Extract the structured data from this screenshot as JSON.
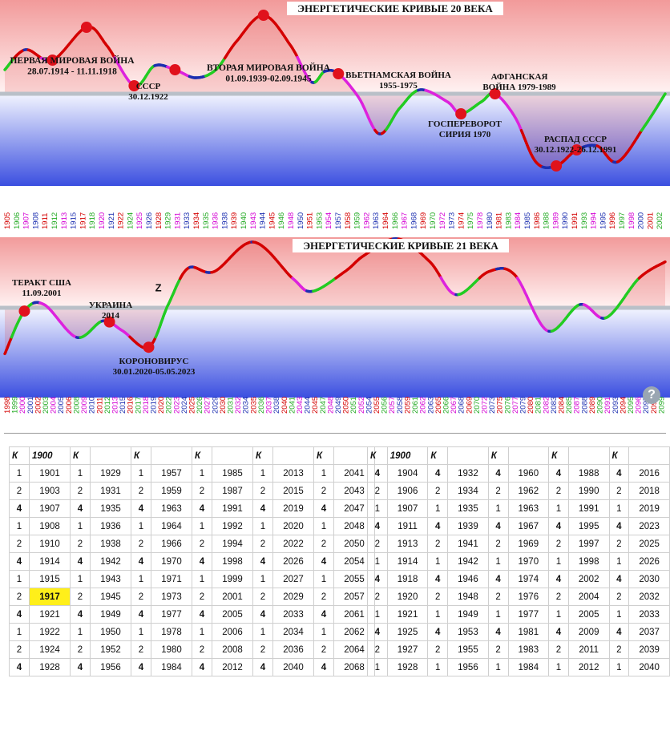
{
  "chart_data": [
    {
      "type": "line",
      "title": "ЭНЕРГЕТИЧЕСКИЕ КРИВЫЕ 20 ВЕКА",
      "x_start": 1905,
      "x_end": 2002,
      "x_tick_labels": [
        "1905",
        "1906",
        "1907",
        "1908",
        "1911",
        "1912",
        "1913",
        "1915",
        "1917",
        "1918",
        "1920",
        "1921",
        "1922",
        "1924",
        "1925",
        "1926",
        "1928",
        "1929",
        "1931",
        "1933",
        "1934",
        "1935",
        "1936",
        "1938",
        "1939",
        "1940",
        "1943",
        "1944",
        "1945",
        "1946",
        "1948",
        "1950",
        "1951",
        "1953",
        "1954",
        "1957",
        "1958",
        "1959",
        "1962",
        "1963",
        "1964",
        "1966",
        "1967",
        "1968",
        "1969",
        "1970",
        "1972",
        "1973",
        "1974",
        "1975",
        "1978",
        "1980",
        "1981",
        "1983",
        "1984",
        "1985",
        "1986",
        "1988",
        "1989",
        "1990",
        "1991",
        "1993",
        "1994",
        "1995",
        "1996",
        "1997",
        "1998",
        "2000",
        "2001",
        "2002"
      ],
      "curve": [
        [
          1905,
          0.3
        ],
        [
          1908,
          0.55
        ],
        [
          1912,
          0.42
        ],
        [
          1917,
          0.83
        ],
        [
          1920,
          0.6
        ],
        [
          1924,
          0.1
        ],
        [
          1927,
          0.35
        ],
        [
          1930,
          0.3
        ],
        [
          1933,
          0.2
        ],
        [
          1936,
          0.3
        ],
        [
          1939,
          0.65
        ],
        [
          1943,
          0.98
        ],
        [
          1947,
          0.6
        ],
        [
          1950,
          0.15
        ],
        [
          1952,
          0.28
        ],
        [
          1954,
          0.25
        ],
        [
          1957,
          -0.05
        ],
        [
          1960,
          -0.5
        ],
        [
          1963,
          -0.18
        ],
        [
          1966,
          0.05
        ],
        [
          1970,
          -0.1
        ],
        [
          1972,
          -0.25
        ],
        [
          1975,
          -0.1
        ],
        [
          1977,
          0.0
        ],
        [
          1980,
          -0.3
        ],
        [
          1983,
          -0.85
        ],
        [
          1986,
          -0.9
        ],
        [
          1989,
          -0.7
        ],
        [
          1992,
          -0.65
        ],
        [
          1995,
          -0.85
        ],
        [
          1999,
          -0.4
        ],
        [
          2002,
          0.0
        ]
      ],
      "events": [
        {
          "year": 1914,
          "label": "ПЕРВАЯ МИРОВАЯ ВОЙНА",
          "sub": "28.07.1914 - 11.11.1918"
        },
        {
          "year": 1922,
          "label": "СССР",
          "sub": "30.12.1922"
        },
        {
          "year": 1939,
          "label": "ВТОРАЯ МИРОВАЯ ВОЙНА",
          "sub": "01.09.1939-02.09.1945"
        },
        {
          "year": 1955,
          "label": "ВЬЕТНАМСКАЯ ВОЙНА",
          "sub": "1955-1975"
        },
        {
          "year": 1970,
          "label": "ГОСПЕРЕВОРОТ",
          "sub": "СИРИЯ 1970"
        },
        {
          "year": 1979,
          "label": "АФГАНСКАЯ",
          "sub": "ВОЙНА 1979-1989"
        },
        {
          "year": 1991,
          "label": "РАСПАД СССР",
          "sub": "30.12.1922-26.12.1991"
        }
      ],
      "markers": [
        1912,
        1917,
        1924,
        1930,
        1943,
        1954,
        1972,
        1977,
        1986,
        1989
      ]
    },
    {
      "type": "line",
      "title": "ЭНЕРГЕТИЧЕСКИЕ КРИВЫЕ 21 ВЕКА",
      "x_start": 1998,
      "x_end": 2099,
      "x_tick_labels": [
        "1998",
        "1999",
        "2000",
        "2001",
        "2002",
        "2003",
        "2004",
        "2005",
        "2006",
        "2008",
        "2009",
        "2010",
        "2011",
        "2012",
        "2013",
        "2015",
        "2016",
        "2017",
        "2018",
        "2019",
        "2020",
        "2022",
        "2023",
        "2024",
        "2025",
        "2026",
        "2027",
        "2029",
        "2030",
        "2031",
        "2032",
        "2034",
        "2035",
        "2036",
        "2037",
        "2038",
        "2040",
        "2041",
        "2043",
        "2044",
        "2045",
        "2047",
        "2048",
        "2049",
        "2050",
        "2051",
        "2052",
        "2054",
        "2055",
        "2056",
        "2057",
        "2058",
        "2059",
        "2061",
        "2062",
        "2063",
        "2065",
        "2066",
        "2067",
        "2068",
        "2069",
        "2070",
        "2072",
        "2073",
        "2075",
        "2076",
        "2077",
        "2079",
        "2080",
        "2081",
        "2082",
        "2083",
        "2084",
        "2085",
        "2087",
        "2088",
        "2089",
        "2090",
        "2091",
        "2093",
        "2094",
        "2095",
        "2096",
        "2097",
        "2098",
        "2099"
      ],
      "annotation": "Z",
      "curve": [
        [
          1998,
          -0.7
        ],
        [
          2001,
          -0.05
        ],
        [
          2004,
          0.05
        ],
        [
          2009,
          -0.45
        ],
        [
          2013,
          -0.2
        ],
        [
          2016,
          -0.35
        ],
        [
          2020,
          -0.6
        ],
        [
          2023,
          0.05
        ],
        [
          2026,
          0.6
        ],
        [
          2030,
          0.55
        ],
        [
          2036,
          1.0
        ],
        [
          2042,
          0.45
        ],
        [
          2045,
          0.25
        ],
        [
          2050,
          0.55
        ],
        [
          2053,
          0.8
        ],
        [
          2058,
          1.05
        ],
        [
          2063,
          0.7
        ],
        [
          2067,
          0.2
        ],
        [
          2072,
          0.55
        ],
        [
          2076,
          0.5
        ],
        [
          2081,
          -0.35
        ],
        [
          2086,
          0.05
        ],
        [
          2090,
          -0.15
        ],
        [
          2095,
          0.45
        ],
        [
          2099,
          0.7
        ]
      ],
      "events": [
        {
          "year": 2001,
          "label": "ТЕРАКТ США",
          "sub": "11.09.2001"
        },
        {
          "year": 2014,
          "label": "УКРАИНА",
          "sub": "2014"
        },
        {
          "year": 2020,
          "label": "КОРОНОВИРУС",
          "sub": "30.01.2020-05.05.2023"
        }
      ],
      "markers": [
        2001,
        2014,
        2020
      ]
    }
  ],
  "table_left": {
    "header": [
      "К",
      "1900",
      "К",
      "",
      "К",
      "",
      "К",
      "",
      "К",
      "",
      "К",
      ""
    ],
    "rows": [
      [
        "1",
        "1901",
        "1",
        "1929",
        "1",
        "1957",
        "1",
        "1985",
        "1",
        "2013",
        "1",
        "2041"
      ],
      [
        "2",
        "1903",
        "2",
        "1931",
        "2",
        "1959",
        "2",
        "1987",
        "2",
        "2015",
        "2",
        "2043"
      ],
      [
        "4",
        "1907",
        "4",
        "1935",
        "4",
        "1963",
        "4",
        "1991",
        "4",
        "2019",
        "4",
        "2047"
      ],
      [
        "1",
        "1908",
        "1",
        "1936",
        "1",
        "1964",
        "1",
        "1992",
        "1",
        "2020",
        "1",
        "2048"
      ],
      [
        "2",
        "1910",
        "2",
        "1938",
        "2",
        "1966",
        "2",
        "1994",
        "2",
        "2022",
        "2",
        "2050"
      ],
      [
        "4",
        "1914",
        "4",
        "1942",
        "4",
        "1970",
        "4",
        "1998",
        "4",
        "2026",
        "4",
        "2054"
      ],
      [
        "1",
        "1915",
        "1",
        "1943",
        "1",
        "1971",
        "1",
        "1999",
        "1",
        "2027",
        "1",
        "2055"
      ],
      [
        "2",
        "1917",
        "2",
        "1945",
        "2",
        "1973",
        "2",
        "2001",
        "2",
        "2029",
        "2",
        "2057"
      ],
      [
        "4",
        "1921",
        "4",
        "1949",
        "4",
        "1977",
        "4",
        "2005",
        "4",
        "2033",
        "4",
        "2061"
      ],
      [
        "1",
        "1922",
        "1",
        "1950",
        "1",
        "1978",
        "1",
        "2006",
        "1",
        "2034",
        "1",
        "2062"
      ],
      [
        "2",
        "1924",
        "2",
        "1952",
        "2",
        "1980",
        "2",
        "2008",
        "2",
        "2036",
        "2",
        "2064"
      ],
      [
        "4",
        "1928",
        "4",
        "1956",
        "4",
        "1984",
        "4",
        "2012",
        "4",
        "2040",
        "4",
        "2068"
      ]
    ]
  },
  "table_right": {
    "header": [
      "К",
      "1900",
      "К",
      "",
      "К",
      "",
      "К",
      "",
      "К",
      ""
    ],
    "rows": [
      [
        "4",
        "1904",
        "4",
        "1932",
        "4",
        "1960",
        "4",
        "1988",
        "4",
        "2016"
      ],
      [
        "2",
        "1906",
        "2",
        "1934",
        "2",
        "1962",
        "2",
        "1990",
        "2",
        "2018"
      ],
      [
        "1",
        "1907",
        "1",
        "1935",
        "1",
        "1963",
        "1",
        "1991",
        "1",
        "2019"
      ],
      [
        "4",
        "1911",
        "4",
        "1939",
        "4",
        "1967",
        "4",
        "1995",
        "4",
        "2023"
      ],
      [
        "2",
        "1913",
        "2",
        "1941",
        "2",
        "1969",
        "2",
        "1997",
        "2",
        "2025"
      ],
      [
        "1",
        "1914",
        "1",
        "1942",
        "1",
        "1970",
        "1",
        "1998",
        "1",
        "2026"
      ],
      [
        "4",
        "1918",
        "4",
        "1946",
        "4",
        "1974",
        "4",
        "2002",
        "4",
        "2030"
      ],
      [
        "2",
        "1920",
        "2",
        "1948",
        "2",
        "1976",
        "2",
        "2004",
        "2",
        "2032"
      ],
      [
        "1",
        "1921",
        "1",
        "1949",
        "1",
        "1977",
        "1",
        "2005",
        "1",
        "2033"
      ],
      [
        "4",
        "1925",
        "4",
        "1953",
        "4",
        "1981",
        "4",
        "2009",
        "4",
        "2037"
      ],
      [
        "2",
        "1927",
        "2",
        "1955",
        "2",
        "1983",
        "2",
        "2011",
        "2",
        "2039"
      ],
      [
        "1",
        "1928",
        "1",
        "1956",
        "1",
        "1984",
        "1",
        "2012",
        "1",
        "2040"
      ]
    ]
  },
  "help_icon": "question-icon",
  "help_symbol": "?",
  "colors": {
    "marker": "#e0121c",
    "line_red": "#d40000",
    "line_magenta": "#dd22dd",
    "line_green": "#22cc22",
    "line_blue": "#1c2fb0",
    "highlight": "#ffef1a"
  }
}
